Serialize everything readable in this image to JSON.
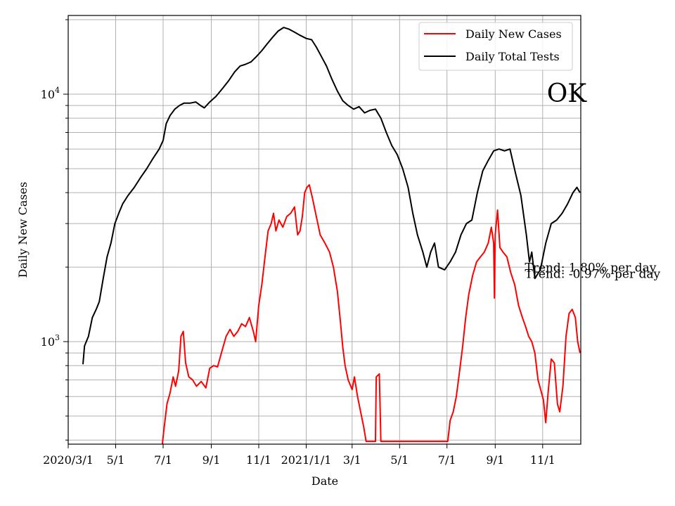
{
  "chart_data": {
    "type": "line",
    "title": "",
    "annotation_label": "OK",
    "xlabel": "Date",
    "ylabel": "Daily New Cases",
    "y_scale": "log",
    "ylim": [
      385,
      20800
    ],
    "xlim": [
      "2020-03-01",
      "2021-12-20"
    ],
    "grid": true,
    "legend_position": "top-right",
    "x_ticks": [
      {
        "date": "2020-03-01",
        "label": "2020/3/1"
      },
      {
        "date": "2020-05-01",
        "label": "5/1"
      },
      {
        "date": "2020-07-01",
        "label": "7/1"
      },
      {
        "date": "2020-09-01",
        "label": "9/1"
      },
      {
        "date": "2020-11-01",
        "label": "11/1"
      },
      {
        "date": "2021-01-01",
        "label": "2021/1/1"
      },
      {
        "date": "2021-03-01",
        "label": "3/1"
      },
      {
        "date": "2021-05-01",
        "label": "5/1"
      },
      {
        "date": "2021-07-01",
        "label": "7/1"
      },
      {
        "date": "2021-09-01",
        "label": "9/1"
      },
      {
        "date": "2021-11-01",
        "label": "11/1"
      }
    ],
    "y_ticks": [
      {
        "value": 1000,
        "base": "10",
        "exp": "3"
      },
      {
        "value": 10000,
        "base": "10",
        "exp": "4"
      }
    ],
    "series": [
      {
        "name": "Daily New Cases",
        "color": "#ff0000",
        "points": [
          [
            "2020-06-30",
            385
          ],
          [
            "2020-07-02",
            440
          ],
          [
            "2020-07-06",
            560
          ],
          [
            "2020-07-10",
            620
          ],
          [
            "2020-07-14",
            720
          ],
          [
            "2020-07-17",
            660
          ],
          [
            "2020-07-21",
            760
          ],
          [
            "2020-07-24",
            1050
          ],
          [
            "2020-07-27",
            1100
          ],
          [
            "2020-07-30",
            820
          ],
          [
            "2020-08-03",
            720
          ],
          [
            "2020-08-08",
            700
          ],
          [
            "2020-08-13",
            660
          ],
          [
            "2020-08-19",
            690
          ],
          [
            "2020-08-25",
            650
          ],
          [
            "2020-08-30",
            780
          ],
          [
            "2020-09-04",
            800
          ],
          [
            "2020-09-09",
            790
          ],
          [
            "2020-09-14",
            900
          ],
          [
            "2020-09-20",
            1050
          ],
          [
            "2020-09-25",
            1120
          ],
          [
            "2020-09-30",
            1050
          ],
          [
            "2020-10-05",
            1100
          ],
          [
            "2020-10-10",
            1180
          ],
          [
            "2020-10-15",
            1150
          ],
          [
            "2020-10-20",
            1250
          ],
          [
            "2020-10-25",
            1100
          ],
          [
            "2020-10-28",
            1000
          ],
          [
            "2020-11-01",
            1400
          ],
          [
            "2020-11-05",
            1700
          ],
          [
            "2020-11-09",
            2200
          ],
          [
            "2020-11-13",
            2800
          ],
          [
            "2020-11-17",
            3000
          ],
          [
            "2020-11-20",
            3300
          ],
          [
            "2020-11-23",
            2800
          ],
          [
            "2020-11-27",
            3100
          ],
          [
            "2020-12-02",
            2900
          ],
          [
            "2020-12-07",
            3200
          ],
          [
            "2020-12-12",
            3300
          ],
          [
            "2020-12-17",
            3500
          ],
          [
            "2020-12-21",
            2700
          ],
          [
            "2020-12-24",
            2800
          ],
          [
            "2020-12-27",
            3200
          ],
          [
            "2020-12-30",
            4000
          ],
          [
            "2021-01-02",
            4200
          ],
          [
            "2021-01-05",
            4300
          ],
          [
            "2021-01-09",
            3800
          ],
          [
            "2021-01-14",
            3200
          ],
          [
            "2021-01-19",
            2700
          ],
          [
            "2021-01-25",
            2500
          ],
          [
            "2021-01-31",
            2300
          ],
          [
            "2021-02-05",
            2000
          ],
          [
            "2021-02-10",
            1600
          ],
          [
            "2021-02-14",
            1200
          ],
          [
            "2021-02-17",
            950
          ],
          [
            "2021-02-20",
            800
          ],
          [
            "2021-02-24",
            700
          ],
          [
            "2021-03-01",
            640
          ],
          [
            "2021-03-04",
            720
          ],
          [
            "2021-03-08",
            600
          ],
          [
            "2021-03-12",
            520
          ],
          [
            "2021-03-16",
            450
          ],
          [
            "2021-03-19",
            395
          ],
          [
            "2021-03-31",
            395
          ],
          [
            "2021-04-01",
            720
          ],
          [
            "2021-04-05",
            740
          ],
          [
            "2021-04-07",
            395
          ],
          [
            "2021-07-02",
            395
          ],
          [
            "2021-07-05",
            480
          ],
          [
            "2021-07-09",
            520
          ],
          [
            "2021-07-13",
            600
          ],
          [
            "2021-07-17",
            750
          ],
          [
            "2021-07-21",
            950
          ],
          [
            "2021-07-25",
            1250
          ],
          [
            "2021-07-29",
            1550
          ],
          [
            "2021-08-03",
            1850
          ],
          [
            "2021-08-08",
            2100
          ],
          [
            "2021-08-13",
            2200
          ],
          [
            "2021-08-18",
            2300
          ],
          [
            "2021-08-23",
            2500
          ],
          [
            "2021-08-27",
            2900
          ],
          [
            "2021-08-30",
            2500
          ],
          [
            "2021-08-31",
            1500
          ],
          [
            "2021-09-01",
            2700
          ],
          [
            "2021-09-04",
            3400
          ],
          [
            "2021-09-07",
            2400
          ],
          [
            "2021-09-11",
            2300
          ],
          [
            "2021-09-16",
            2200
          ],
          [
            "2021-09-21",
            1900
          ],
          [
            "2021-09-26",
            1700
          ],
          [
            "2021-10-01",
            1400
          ],
          [
            "2021-10-06",
            1250
          ],
          [
            "2021-10-10",
            1150
          ],
          [
            "2021-10-14",
            1050
          ],
          [
            "2021-10-18",
            1000
          ],
          [
            "2021-10-22",
            900
          ],
          [
            "2021-10-26",
            700
          ],
          [
            "2021-10-30",
            630
          ],
          [
            "2021-11-02",
            580
          ],
          [
            "2021-11-05",
            470
          ],
          [
            "2021-11-08",
            620
          ],
          [
            "2021-11-12",
            850
          ],
          [
            "2021-11-16",
            820
          ],
          [
            "2021-11-20",
            560
          ],
          [
            "2021-11-23",
            520
          ],
          [
            "2021-11-27",
            660
          ],
          [
            "2021-12-01",
            1050
          ],
          [
            "2021-12-05",
            1300
          ],
          [
            "2021-12-09",
            1350
          ],
          [
            "2021-12-13",
            1250
          ],
          [
            "2021-12-16",
            1000
          ],
          [
            "2021-12-19",
            900
          ]
        ]
      },
      {
        "name": "Daily Total Tests",
        "color": "#000000",
        "points": [
          [
            "2020-03-20",
            810
          ],
          [
            "2020-03-22",
            960
          ],
          [
            "2020-03-27",
            1050
          ],
          [
            "2020-04-01",
            1250
          ],
          [
            "2020-04-06",
            1350
          ],
          [
            "2020-04-10",
            1450
          ],
          [
            "2020-04-15",
            1800
          ],
          [
            "2020-04-20",
            2200
          ],
          [
            "2020-04-25",
            2500
          ],
          [
            "2020-04-30",
            3000
          ],
          [
            "2020-05-05",
            3300
          ],
          [
            "2020-05-10",
            3600
          ],
          [
            "2020-05-17",
            3900
          ],
          [
            "2020-05-25",
            4200
          ],
          [
            "2020-06-02",
            4600
          ],
          [
            "2020-06-10",
            5000
          ],
          [
            "2020-06-18",
            5500
          ],
          [
            "2020-06-26",
            6000
          ],
          [
            "2020-07-01",
            6500
          ],
          [
            "2020-07-05",
            7600
          ],
          [
            "2020-07-10",
            8200
          ],
          [
            "2020-07-16",
            8700
          ],
          [
            "2020-07-22",
            9000
          ],
          [
            "2020-07-28",
            9200
          ],
          [
            "2020-08-05",
            9200
          ],
          [
            "2020-08-12",
            9300
          ],
          [
            "2020-08-18",
            9000
          ],
          [
            "2020-08-23",
            8800
          ],
          [
            "2020-08-30",
            9300
          ],
          [
            "2020-09-07",
            9800
          ],
          [
            "2020-09-15",
            10500
          ],
          [
            "2020-09-23",
            11300
          ],
          [
            "2020-10-01",
            12300
          ],
          [
            "2020-10-08",
            13000
          ],
          [
            "2020-10-15",
            13200
          ],
          [
            "2020-10-22",
            13500
          ],
          [
            "2020-10-29",
            14200
          ],
          [
            "2020-11-05",
            15000
          ],
          [
            "2020-11-12",
            16000
          ],
          [
            "2020-11-19",
            17000
          ],
          [
            "2020-11-26",
            18000
          ],
          [
            "2020-12-03",
            18600
          ],
          [
            "2020-12-10",
            18300
          ],
          [
            "2020-12-17",
            17800
          ],
          [
            "2020-12-24",
            17300
          ],
          [
            "2021-01-01",
            16800
          ],
          [
            "2021-01-08",
            16600
          ],
          [
            "2021-01-14",
            15500
          ],
          [
            "2021-01-20",
            14300
          ],
          [
            "2021-01-27",
            13000
          ],
          [
            "2021-02-03",
            11500
          ],
          [
            "2021-02-10",
            10300
          ],
          [
            "2021-02-17",
            9400
          ],
          [
            "2021-02-24",
            9000
          ],
          [
            "2021-03-03",
            8700
          ],
          [
            "2021-03-10",
            8900
          ],
          [
            "2021-03-17",
            8400
          ],
          [
            "2021-03-24",
            8600
          ],
          [
            "2021-03-31",
            8700
          ],
          [
            "2021-04-07",
            8000
          ],
          [
            "2021-04-14",
            7000
          ],
          [
            "2021-04-21",
            6200
          ],
          [
            "2021-04-28",
            5700
          ],
          [
            "2021-05-05",
            5000
          ],
          [
            "2021-05-12",
            4200
          ],
          [
            "2021-05-18",
            3300
          ],
          [
            "2021-05-24",
            2700
          ],
          [
            "2021-05-31",
            2300
          ],
          [
            "2021-06-05",
            2000
          ],
          [
            "2021-06-10",
            2300
          ],
          [
            "2021-06-15",
            2500
          ],
          [
            "2021-06-20",
            2000
          ],
          [
            "2021-06-28",
            1950
          ],
          [
            "2021-07-05",
            2100
          ],
          [
            "2021-07-12",
            2300
          ],
          [
            "2021-07-19",
            2700
          ],
          [
            "2021-07-26",
            3000
          ],
          [
            "2021-08-02",
            3100
          ],
          [
            "2021-08-09",
            4000
          ],
          [
            "2021-08-16",
            4900
          ],
          [
            "2021-08-23",
            5400
          ],
          [
            "2021-08-30",
            5900
          ],
          [
            "2021-09-06",
            6000
          ],
          [
            "2021-09-13",
            5900
          ],
          [
            "2021-09-20",
            6000
          ],
          [
            "2021-09-27",
            4800
          ],
          [
            "2021-10-04",
            3900
          ],
          [
            "2021-10-11",
            2700
          ],
          [
            "2021-10-15",
            2100
          ],
          [
            "2021-10-18",
            2300
          ],
          [
            "2021-10-22",
            1800
          ],
          [
            "2021-10-29",
            1950
          ],
          [
            "2021-11-05",
            2500
          ],
          [
            "2021-11-12",
            3000
          ],
          [
            "2021-11-19",
            3100
          ],
          [
            "2021-11-26",
            3300
          ],
          [
            "2021-12-03",
            3600
          ],
          [
            "2021-12-10",
            4000
          ],
          [
            "2021-12-15",
            4200
          ],
          [
            "2021-12-19",
            4000
          ]
        ]
      }
    ],
    "trend_labels": [
      {
        "text": "Trend: 1.80% per day",
        "date": "2021-10-09",
        "value": 1920
      },
      {
        "text": "Trend: -0.97% per day",
        "date": "2021-10-09",
        "value": 1810
      }
    ]
  }
}
